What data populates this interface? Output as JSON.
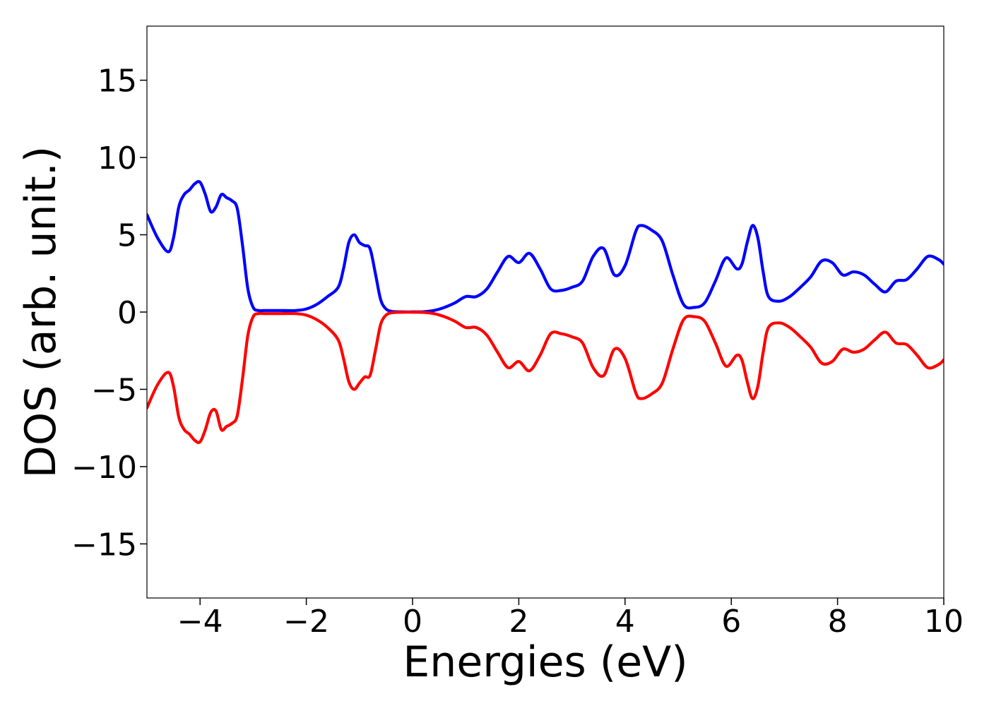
{
  "chart_data": {
    "type": "line",
    "xlabel": "Energies (eV)",
    "ylabel": "DOS (arb. unit.)",
    "xlim": [
      -5,
      10
    ],
    "ylim": [
      -18.5,
      18.5
    ],
    "xticks": [
      -4,
      -2,
      0,
      2,
      4,
      6,
      8,
      10
    ],
    "yticks": [
      -15,
      -10,
      -5,
      0,
      5,
      10,
      15
    ],
    "xtick_labels": [
      "−4",
      "−2",
      "0",
      "2",
      "4",
      "6",
      "8",
      "10"
    ],
    "ytick_labels": [
      "−15",
      "−10",
      "−5",
      "0",
      "5",
      "10",
      "15"
    ],
    "grid": false,
    "series": [
      {
        "color": "#0000ff",
        "x": [
          -5.0,
          -4.8,
          -4.6,
          -4.5,
          -4.4,
          -4.3,
          -4.2,
          -4.1,
          -4.0,
          -3.9,
          -3.8,
          -3.7,
          -3.6,
          -3.5,
          -3.4,
          -3.3,
          -3.2,
          -3.1,
          -3.0,
          -2.9,
          -2.8,
          -2.7,
          -2.5,
          -2.2,
          -2.0,
          -1.8,
          -1.6,
          -1.4,
          -1.3,
          -1.2,
          -1.1,
          -1.0,
          -0.9,
          -0.8,
          -0.7,
          -0.6,
          -0.5,
          -0.4,
          -0.3,
          -0.2,
          0.0,
          0.2,
          0.4,
          0.6,
          0.8,
          1.0,
          1.2,
          1.4,
          1.6,
          1.8,
          2.0,
          2.2,
          2.4,
          2.6,
          2.8,
          3.0,
          3.2,
          3.4,
          3.6,
          3.8,
          4.0,
          4.2,
          4.3,
          4.5,
          4.7,
          4.9,
          5.1,
          5.3,
          5.5,
          5.7,
          5.9,
          6.1,
          6.2,
          6.3,
          6.4,
          6.5,
          6.6,
          6.7,
          6.9,
          7.1,
          7.3,
          7.5,
          7.7,
          7.9,
          8.1,
          8.3,
          8.5,
          8.7,
          8.9,
          9.1,
          9.3,
          9.5,
          9.7,
          9.9,
          10.0
        ],
        "y": [
          6.3,
          4.8,
          3.9,
          4.8,
          6.8,
          7.6,
          7.9,
          8.3,
          8.4,
          7.6,
          6.5,
          6.8,
          7.6,
          7.4,
          7.2,
          6.7,
          4.3,
          1.5,
          0.3,
          0.1,
          0.1,
          0.1,
          0.1,
          0.1,
          0.2,
          0.5,
          1.0,
          1.6,
          2.8,
          4.5,
          5.0,
          4.5,
          4.3,
          4.1,
          2.5,
          0.8,
          0.2,
          0.05,
          0.02,
          0.01,
          0.01,
          0.02,
          0.1,
          0.3,
          0.6,
          1.0,
          1.0,
          1.5,
          2.6,
          3.6,
          3.2,
          3.8,
          2.8,
          1.5,
          1.4,
          1.6,
          2.0,
          3.6,
          4.1,
          2.4,
          3.0,
          5.2,
          5.6,
          5.3,
          4.6,
          2.4,
          0.5,
          0.3,
          0.6,
          2.0,
          3.5,
          2.8,
          3.1,
          4.5,
          5.6,
          4.8,
          2.6,
          1.0,
          0.7,
          1.0,
          1.6,
          2.3,
          3.3,
          3.2,
          2.4,
          2.6,
          2.4,
          1.8,
          1.3,
          2.0,
          2.1,
          2.8,
          3.6,
          3.4,
          3.1
        ]
      },
      {
        "color": "#ff0000",
        "x": [
          -5.0,
          -4.8,
          -4.6,
          -4.5,
          -4.4,
          -4.3,
          -4.2,
          -4.1,
          -4.0,
          -3.9,
          -3.8,
          -3.7,
          -3.6,
          -3.5,
          -3.4,
          -3.3,
          -3.2,
          -3.1,
          -3.0,
          -2.9,
          -2.8,
          -2.7,
          -2.5,
          -2.2,
          -2.0,
          -1.8,
          -1.6,
          -1.4,
          -1.3,
          -1.2,
          -1.1,
          -1.0,
          -0.9,
          -0.8,
          -0.7,
          -0.6,
          -0.5,
          -0.4,
          -0.3,
          -0.2,
          0.0,
          0.2,
          0.4,
          0.6,
          0.8,
          1.0,
          1.2,
          1.4,
          1.6,
          1.8,
          2.0,
          2.2,
          2.4,
          2.6,
          2.8,
          3.0,
          3.2,
          3.4,
          3.6,
          3.8,
          4.0,
          4.2,
          4.3,
          4.5,
          4.7,
          4.9,
          5.1,
          5.3,
          5.5,
          5.7,
          5.9,
          6.1,
          6.2,
          6.3,
          6.4,
          6.5,
          6.6,
          6.7,
          6.9,
          7.1,
          7.3,
          7.5,
          7.7,
          7.9,
          8.1,
          8.3,
          8.5,
          8.7,
          8.9,
          9.1,
          9.3,
          9.5,
          9.7,
          9.9,
          10.0
        ],
        "y": [
          -6.2,
          -4.7,
          -3.9,
          -4.8,
          -6.8,
          -7.6,
          -7.9,
          -8.3,
          -8.4,
          -7.6,
          -6.5,
          -6.4,
          -7.6,
          -7.4,
          -7.2,
          -6.7,
          -4.3,
          -1.5,
          -0.3,
          -0.1,
          -0.1,
          -0.1,
          -0.1,
          -0.1,
          -0.2,
          -0.5,
          -1.0,
          -1.8,
          -3.0,
          -4.5,
          -5.0,
          -4.6,
          -4.2,
          -4.1,
          -2.5,
          -0.8,
          -0.2,
          -0.05,
          -0.02,
          -0.01,
          -0.01,
          -0.02,
          -0.1,
          -0.3,
          -0.6,
          -1.0,
          -1.0,
          -1.5,
          -2.6,
          -3.6,
          -3.2,
          -3.8,
          -2.8,
          -1.4,
          -1.4,
          -1.6,
          -2.0,
          -3.6,
          -4.1,
          -2.4,
          -3.0,
          -5.2,
          -5.6,
          -5.3,
          -4.6,
          -2.4,
          -0.5,
          -0.3,
          -0.6,
          -2.0,
          -3.5,
          -2.8,
          -3.1,
          -4.5,
          -5.6,
          -4.8,
          -2.6,
          -1.0,
          -0.7,
          -1.0,
          -1.6,
          -2.3,
          -3.3,
          -3.2,
          -2.4,
          -2.6,
          -2.4,
          -1.8,
          -1.3,
          -2.0,
          -2.1,
          -2.8,
          -3.6,
          -3.4,
          -3.1
        ]
      }
    ]
  }
}
